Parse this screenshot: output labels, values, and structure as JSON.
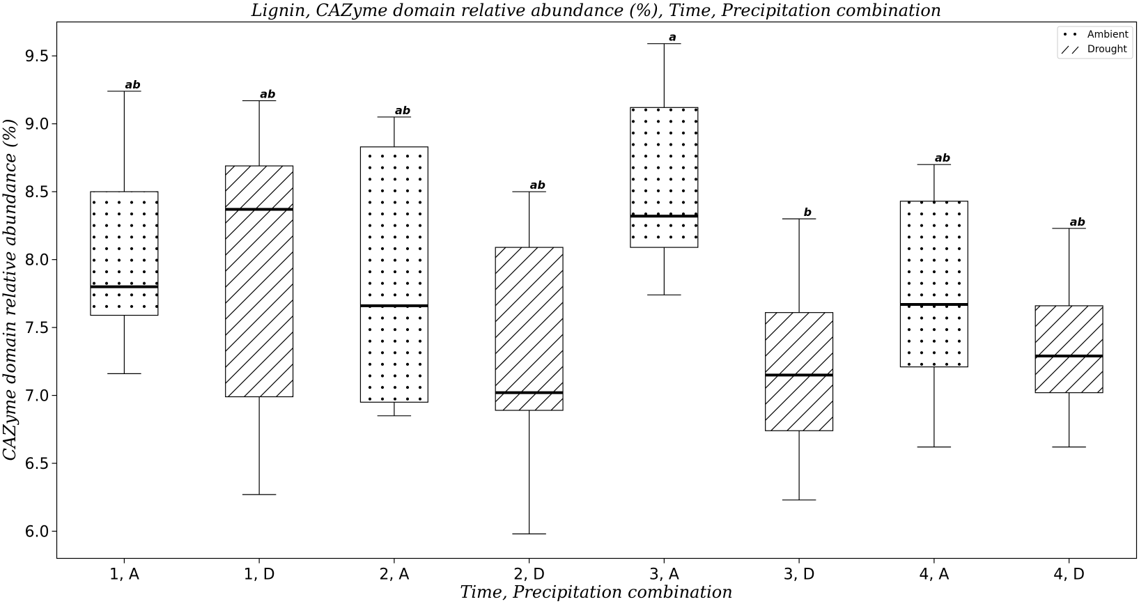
{
  "chart_data": {
    "type": "box",
    "title": "Lignin, CAZyme domain relative abundance (%), Time, Precipitation combination",
    "xlabel": "Time, Precipitation combination",
    "ylabel": "CAZyme domain relative abundance (%)",
    "ylim": [
      5.8,
      9.75
    ],
    "yticks": [
      "6.0",
      "6.5",
      "7.0",
      "7.5",
      "8.0",
      "8.5",
      "9.0",
      "9.5"
    ],
    "ytick_values": [
      6.0,
      6.5,
      7.0,
      7.5,
      8.0,
      8.5,
      9.0,
      9.5
    ],
    "grid": false,
    "legend_position": "top-right",
    "legend": [
      {
        "label": "Ambient",
        "pattern": "dots"
      },
      {
        "label": "Drought",
        "pattern": "hatch"
      }
    ],
    "boxes": [
      {
        "category": "1, A",
        "pattern": "dots",
        "whisker_low": 7.16,
        "q1": 7.59,
        "median": 7.8,
        "q3": 8.5,
        "whisker_high": 9.24,
        "sig": "ab"
      },
      {
        "category": "1, D",
        "pattern": "hatch",
        "whisker_low": 6.27,
        "q1": 6.99,
        "median": 8.37,
        "q3": 8.69,
        "whisker_high": 9.17,
        "sig": "ab"
      },
      {
        "category": "2, A",
        "pattern": "dots",
        "whisker_low": 6.85,
        "q1": 6.95,
        "median": 7.66,
        "q3": 8.83,
        "whisker_high": 9.05,
        "sig": "ab"
      },
      {
        "category": "2, D",
        "pattern": "hatch",
        "whisker_low": 5.98,
        "q1": 6.89,
        "median": 7.02,
        "q3": 8.09,
        "whisker_high": 8.5,
        "sig": "ab"
      },
      {
        "category": "3, A",
        "pattern": "dots",
        "whisker_low": 7.74,
        "q1": 8.09,
        "median": 8.32,
        "q3": 9.12,
        "whisker_high": 9.59,
        "sig": "a"
      },
      {
        "category": "3, D",
        "pattern": "hatch",
        "whisker_low": 6.23,
        "q1": 6.74,
        "median": 7.15,
        "q3": 7.61,
        "whisker_high": 8.3,
        "sig": "b"
      },
      {
        "category": "4, A",
        "pattern": "dots",
        "whisker_low": 6.62,
        "q1": 7.21,
        "median": 7.67,
        "q3": 8.43,
        "whisker_high": 8.7,
        "sig": "ab"
      },
      {
        "category": "4, D",
        "pattern": "hatch",
        "whisker_low": 6.62,
        "q1": 7.02,
        "median": 7.29,
        "q3": 7.66,
        "whisker_high": 8.23,
        "sig": "ab"
      }
    ]
  }
}
